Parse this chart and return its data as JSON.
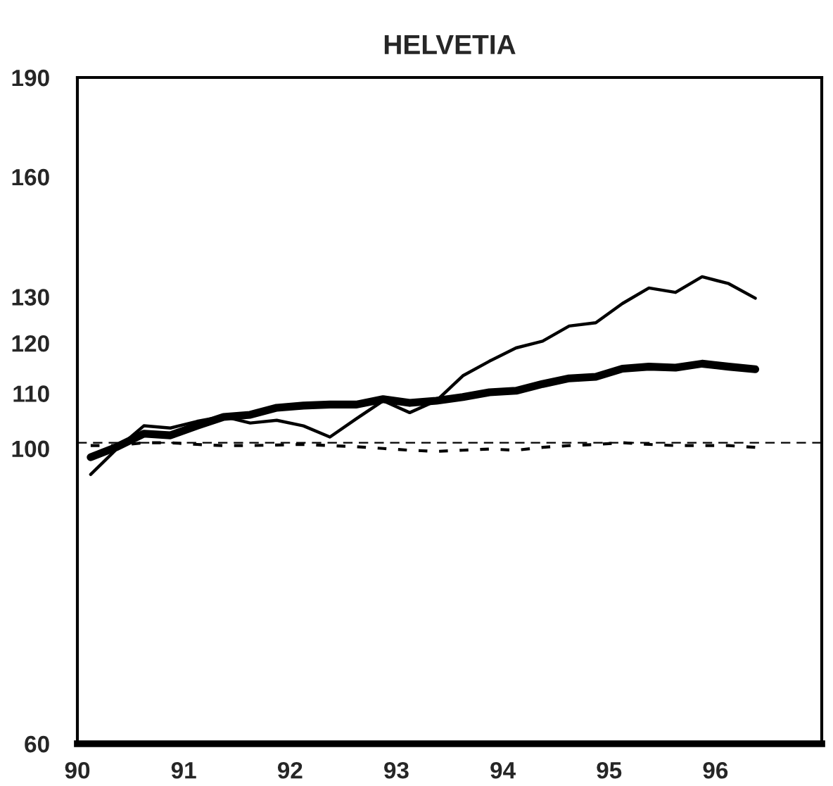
{
  "chart_data": {
    "type": "line",
    "title": "HELVETIA",
    "x": [
      90.125,
      90.375,
      90.625,
      90.875,
      91.125,
      91.375,
      91.625,
      91.875,
      92.125,
      92.375,
      92.625,
      92.875,
      93.125,
      93.375,
      93.625,
      93.875,
      94.125,
      94.375,
      94.625,
      94.875,
      95.125,
      95.375,
      95.625,
      95.875,
      96.125,
      96.375
    ],
    "series": [
      {
        "color": "#000000",
        "line_style": "solid",
        "values": [
          95.6,
          100,
          104,
          103.6,
          104.8,
          105.7,
          104.5,
          105,
          104,
          102,
          105.3,
          108.6,
          106.4,
          108.6,
          113.4,
          116.3,
          119,
          120.4,
          123.6,
          124.3,
          128.5,
          132,
          131,
          134.6,
          133,
          129.7
        ]
      },
      {
        "color": "#000000",
        "line_style": "solid",
        "values": [
          98.5,
          100.3,
          102.6,
          102.3,
          104,
          105.6,
          106,
          107.3,
          107.7,
          107.9,
          107.9,
          108.9,
          108.2,
          108.6,
          109.3,
          110.2,
          110.5,
          111.8,
          112.9,
          113.2,
          114.8,
          115.2,
          115,
          115.8,
          115.2,
          114.7
        ]
      },
      {
        "color": "#000000",
        "line_style": "dotted",
        "values": [
          100.5,
          100.5,
          101,
          101,
          100.7,
          100.5,
          100.5,
          100.6,
          100.7,
          100.5,
          100.3,
          100,
          99.7,
          99.5,
          99.7,
          99.9,
          99.7,
          100.2,
          100.5,
          100.7,
          101,
          100.7,
          100.5,
          100.5,
          100.5,
          100.2
        ]
      }
    ],
    "ref_lines": [
      {
        "axis": "y",
        "value": 101,
        "color": "#000000",
        "line_style": "dashed"
      }
    ],
    "log": "y",
    "xlim": [
      90,
      97
    ],
    "xticks": [
      90,
      91,
      92,
      93,
      94,
      95,
      96
    ],
    "ylim": [
      60,
      190
    ],
    "yticks": [
      60,
      100,
      110,
      120,
      130,
      160,
      190
    ],
    "grid": false,
    "legend": false
  }
}
